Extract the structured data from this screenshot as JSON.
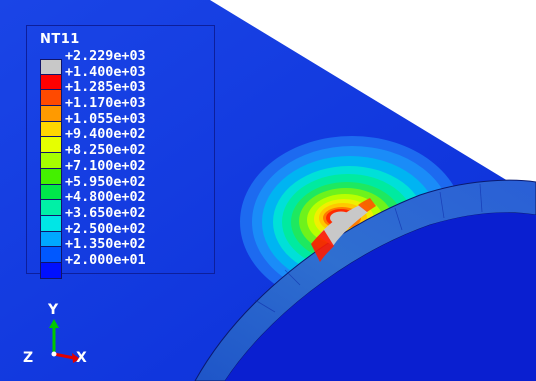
{
  "viewport": {
    "background_color": "#1038e0",
    "surface_color": "#0a1fd0",
    "ring_color": "#2a63c9"
  },
  "legend": {
    "title": "NT11",
    "colors": [
      "#c8c8c8",
      "#ff0000",
      "#ff4a00",
      "#ff9a00",
      "#ffd600",
      "#e6ff00",
      "#a6ff00",
      "#44f000",
      "#00e84a",
      "#00f0a6",
      "#00e6e6",
      "#00a8ff",
      "#0058ff",
      "#0010ff"
    ],
    "values": [
      "+2.229e+03",
      "+1.400e+03",
      "+1.285e+03",
      "+1.170e+03",
      "+1.055e+03",
      "+9.400e+02",
      "+8.250e+02",
      "+7.100e+02",
      "+5.950e+02",
      "+4.800e+02",
      "+3.650e+02",
      "+2.500e+02",
      "+1.350e+02",
      "+2.000e+01"
    ]
  },
  "triad": {
    "y_label": "Y",
    "z_label": "Z",
    "x_label": "X",
    "y_axis_color": "#00c800",
    "x_axis_color": "#e00000"
  }
}
